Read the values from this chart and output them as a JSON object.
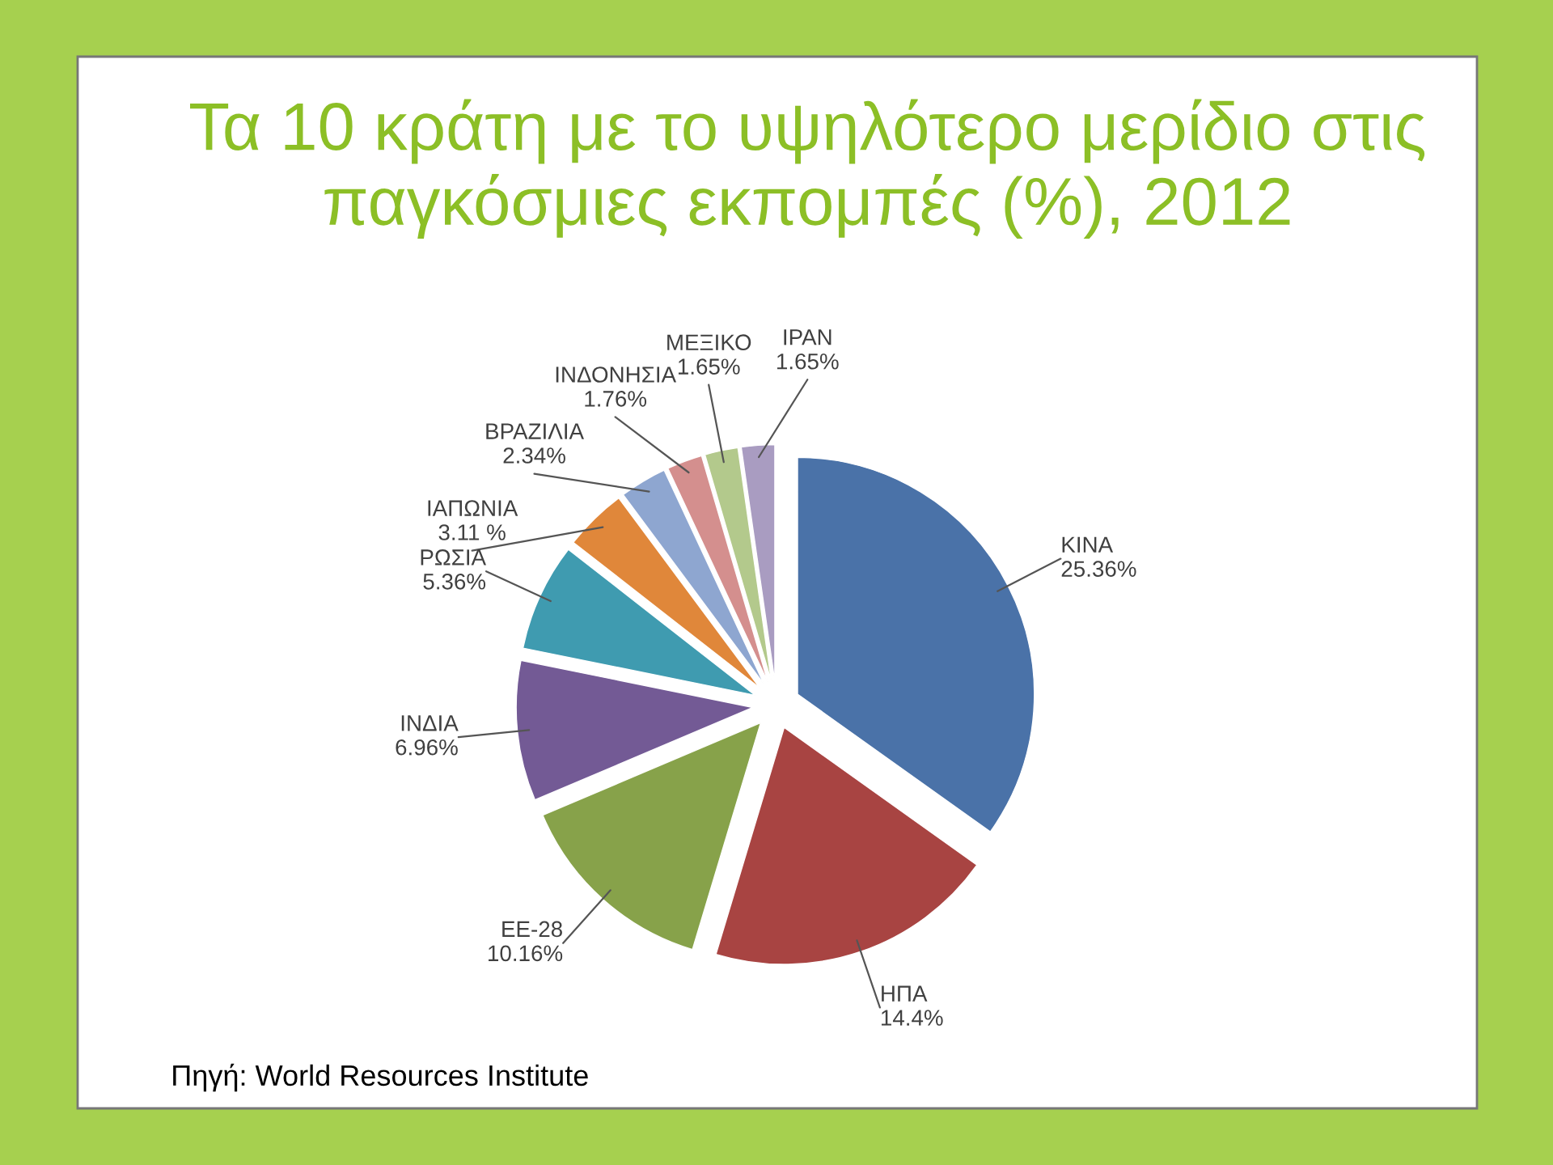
{
  "chart_data": {
    "type": "pie",
    "title": "Τα 10 κράτη με το υψηλότερο μερίδιο στις παγκόσμιες εκπομπές (%), 2012",
    "categories": [
      "ΚΙΝΑ",
      "ΗΠΑ",
      "ΕΕ-28",
      "ΙΝΔΙΑ",
      "ΡΩΣΙΑ",
      "ΙΑΠΩΝΙΑ",
      "ΒΡΑΖΙΛΙΑ",
      "ΙΝΔΟΝΗΣΙΑ",
      "ΜΕΞΙΚΟ",
      "ΙΡΑΝ"
    ],
    "values": [
      25.36,
      14.4,
      10.16,
      6.96,
      5.36,
      3.11,
      2.34,
      1.76,
      1.65,
      1.65
    ],
    "value_labels": [
      "25.36%",
      "14.4%",
      "10.16%",
      "6.96%",
      "5.36%",
      "3.11 %",
      "2.34%",
      "1.76%",
      "1.65%",
      "1.65%"
    ],
    "colors": [
      "#4a72a8",
      "#a84442",
      "#87a24a",
      "#735a95",
      "#3f9bb0",
      "#e0873a",
      "#8ea6d0",
      "#d48f8e",
      "#b3c98c",
      "#a99cc1"
    ],
    "annotations": [
      "Πηγή: World Resources Institute"
    ],
    "legend": false
  }
}
